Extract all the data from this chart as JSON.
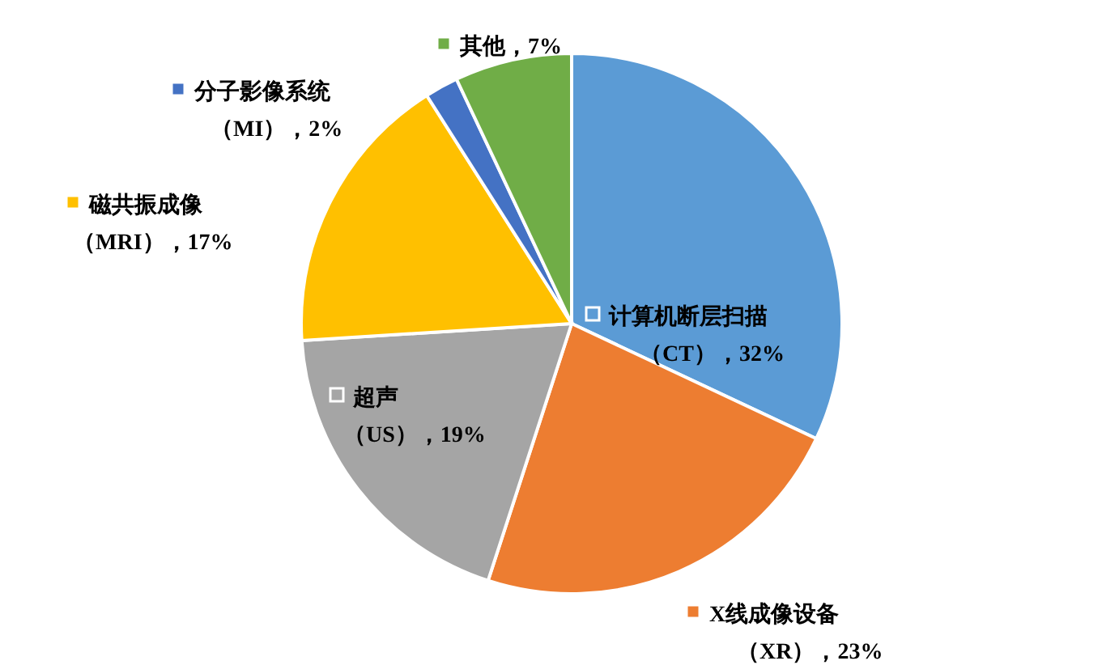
{
  "chart_data": {
    "type": "pie",
    "categories": [
      "计算机断层扫描（CT）",
      "X线成像设备（XR）",
      "超声（US）",
      "磁共振成像（MRI）",
      "分子影像系统（MI）",
      "其他"
    ],
    "values": [
      32,
      23,
      19,
      17,
      2,
      7
    ],
    "value_labels": [
      "32%",
      "23%",
      "19%",
      "17%",
      "2%",
      "7%"
    ],
    "colors": [
      "#5b9bd5",
      "#ed7d31",
      "#a5a5a5",
      "#ffc000",
      "#4472c4",
      "#70ad47"
    ],
    "legend": "bottom left"
  }
}
